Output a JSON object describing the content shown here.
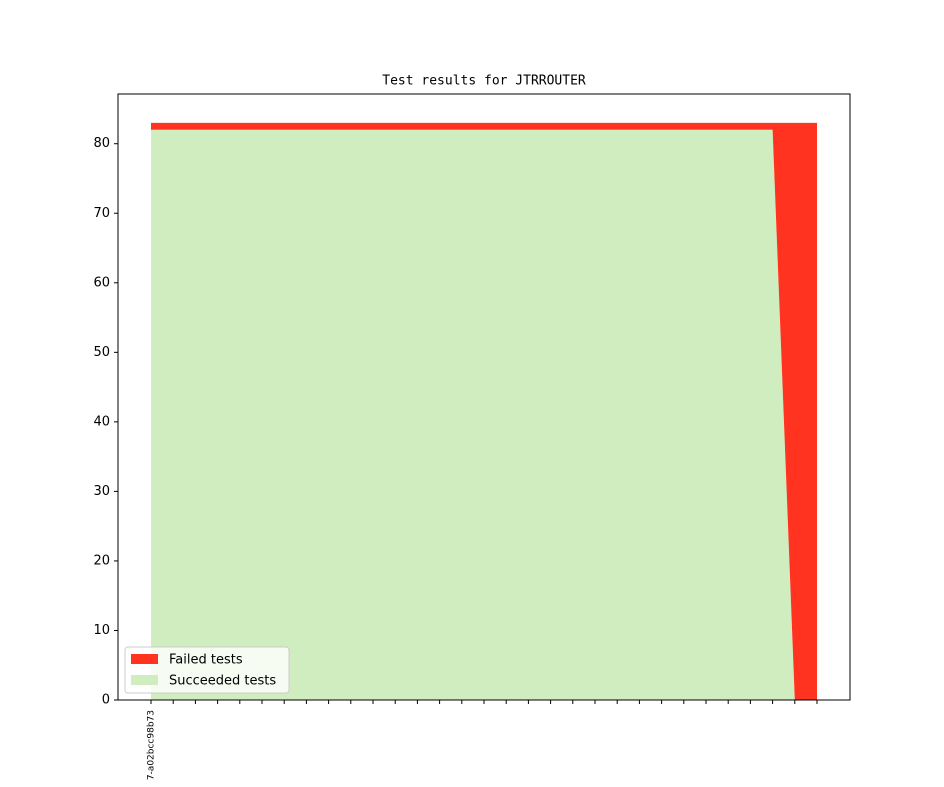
{
  "chart_data": {
    "type": "stacked_area",
    "title": "Test results for JTRROUTER",
    "categories": [
      "7-a02bcc98b73",
      null,
      null,
      null,
      null,
      null,
      null,
      null,
      null,
      null,
      null,
      null,
      null,
      null,
      null,
      null,
      null,
      null,
      null,
      null,
      null,
      null,
      null,
      null,
      null,
      null,
      null,
      null,
      null,
      null,
      null
    ],
    "series": [
      {
        "name": "Failed tests",
        "color": "#ff331f",
        "values": [
          1,
          1,
          1,
          1,
          1,
          1,
          1,
          1,
          1,
          1,
          1,
          1,
          1,
          1,
          1,
          1,
          1,
          1,
          1,
          1,
          1,
          1,
          1,
          1,
          1,
          1,
          1,
          1,
          1,
          83,
          83
        ]
      },
      {
        "name": "Succeeded tests",
        "color": "#cfedbf",
        "values": [
          82,
          82,
          82,
          82,
          82,
          82,
          82,
          82,
          82,
          82,
          82,
          82,
          82,
          82,
          82,
          82,
          82,
          82,
          82,
          82,
          82,
          82,
          82,
          82,
          82,
          82,
          82,
          82,
          82,
          0,
          0
        ]
      }
    ],
    "ylim": [
      0,
      87.15
    ],
    "yticks": [
      0,
      10,
      20,
      30,
      40,
      50,
      60,
      70,
      80
    ],
    "legend": "lower left",
    "grid": false
  }
}
